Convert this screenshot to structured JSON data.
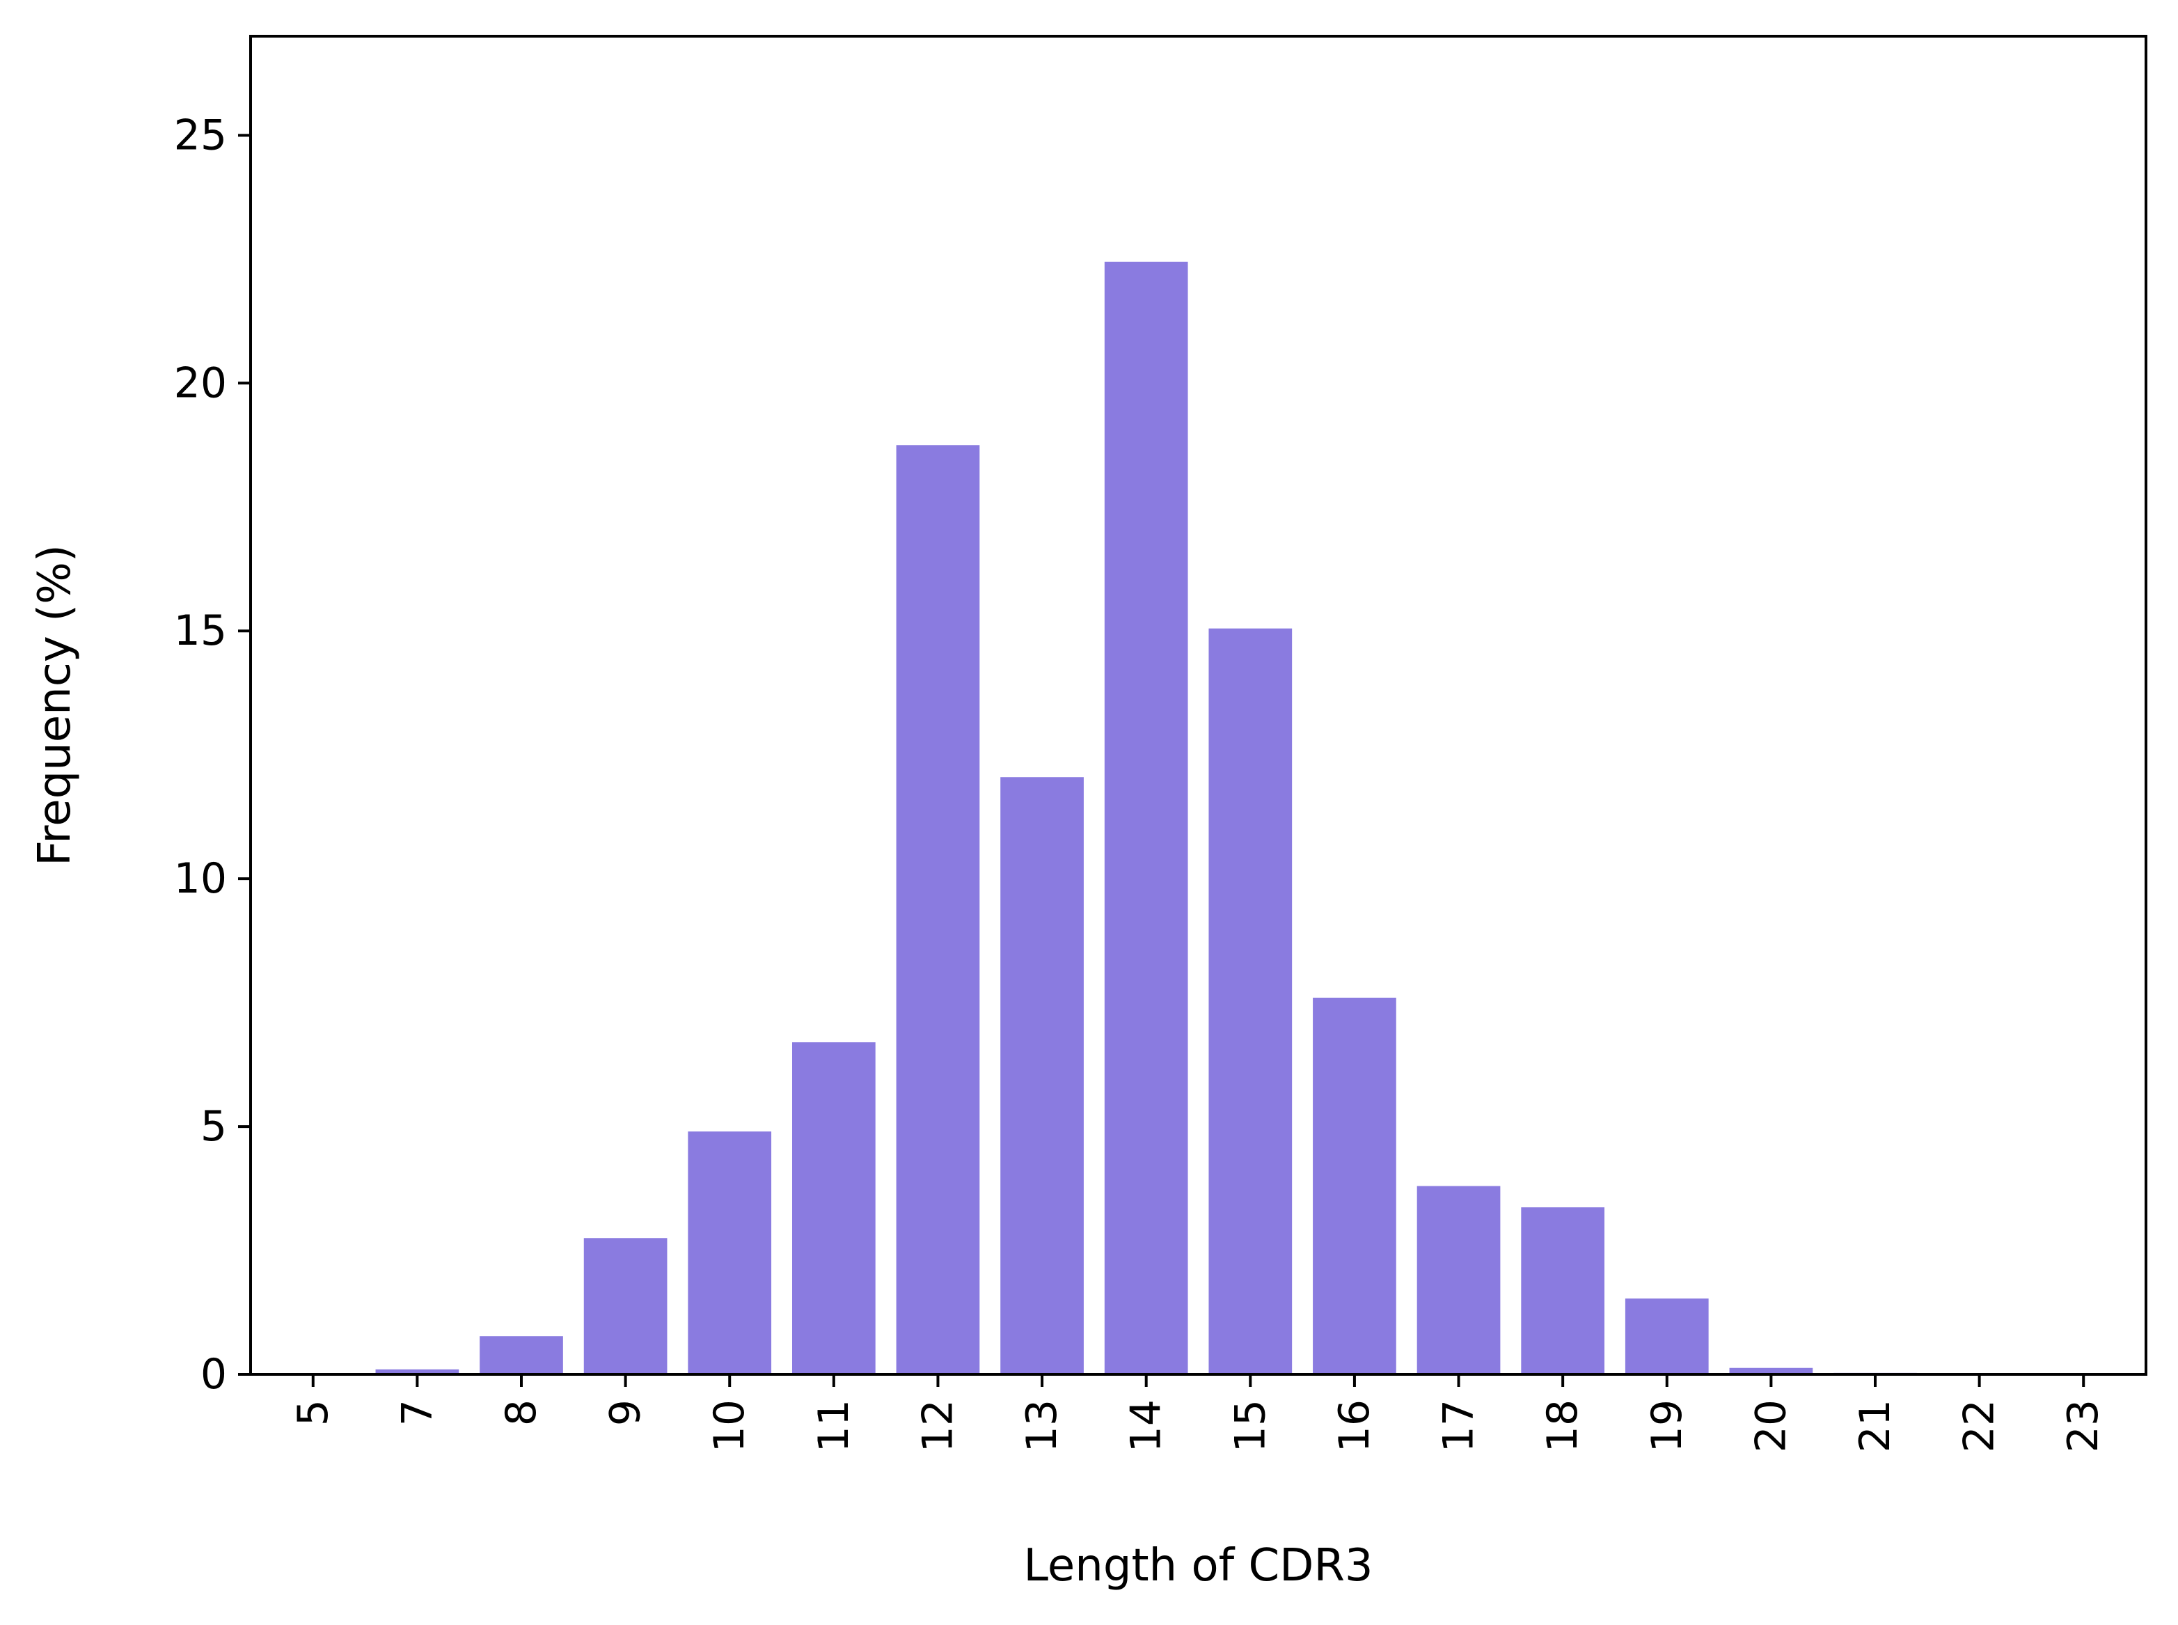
{
  "chart_data": {
    "type": "bar",
    "title": "",
    "xlabel": "Length of CDR3",
    "ylabel": "Frequency (%)",
    "categories": [
      "5",
      "7",
      "8",
      "9",
      "10",
      "11",
      "12",
      "13",
      "14",
      "15",
      "16",
      "17",
      "18",
      "19",
      "20",
      "21",
      "22",
      "23"
    ],
    "values": [
      0.02,
      0.1,
      0.77,
      2.75,
      4.9,
      6.7,
      18.75,
      12.05,
      22.45,
      15.05,
      7.6,
      3.8,
      3.37,
      1.53,
      0.13,
      0.03,
      0.02,
      0.02
    ],
    "ylim": [
      0,
      27
    ],
    "yticks": [
      0,
      5,
      10,
      15,
      20,
      25
    ],
    "bar_color": "#8a7be0",
    "grid": false,
    "legend": "none"
  }
}
